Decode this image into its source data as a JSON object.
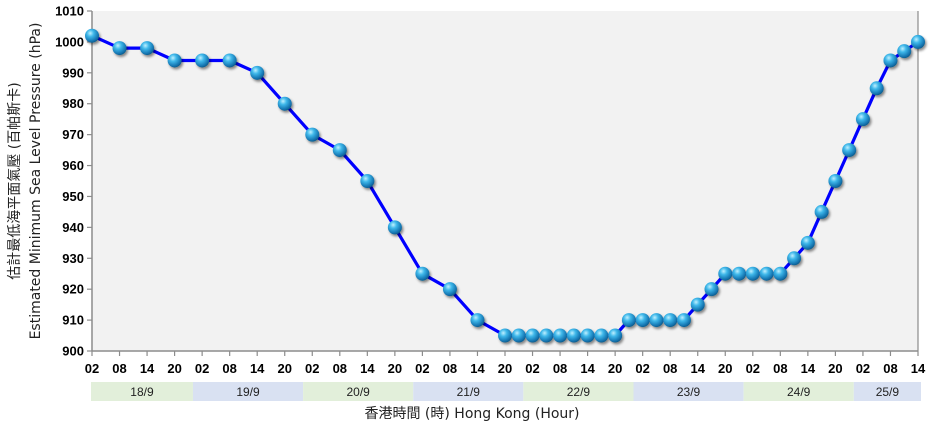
{
  "chart_data": {
    "type": "line",
    "title": "",
    "xlabel": "香港時間 (時) Hong Kong (Hour)",
    "ylabel_zh": "估計最低海平面氣壓 (百帕斯卡)",
    "ylabel_en": "Estimated Minimum Sea Level Pressure (hPa)",
    "ylim": [
      900,
      1010
    ],
    "yticks": [
      900,
      910,
      920,
      930,
      940,
      950,
      960,
      970,
      980,
      990,
      1000,
      1010
    ],
    "grid": false,
    "legend": null,
    "x_unit": "hours since 18/9 02:00 HKT",
    "xlim": [
      0,
      180
    ],
    "xtick_hours": [
      0,
      6,
      12,
      18,
      24,
      30,
      36,
      42,
      48,
      54,
      60,
      66,
      72,
      78,
      84,
      90,
      96,
      102,
      108,
      114,
      120,
      126,
      132,
      138,
      144,
      150,
      156,
      162,
      168,
      174,
      180
    ],
    "xtick_labels": [
      "02",
      "08",
      "14",
      "20",
      "02",
      "08",
      "14",
      "20",
      "02",
      "08",
      "14",
      "20",
      "02",
      "08",
      "14",
      "20",
      "02",
      "08",
      "14",
      "20",
      "02",
      "08",
      "14",
      "20",
      "02",
      "08",
      "14",
      "20",
      "02",
      "08",
      "14"
    ],
    "date_bands": [
      {
        "label": "18/9",
        "start": -2,
        "end": 22,
        "color": "#e2efda"
      },
      {
        "label": "19/9",
        "start": 22,
        "end": 46,
        "color": "#d9e1f2"
      },
      {
        "label": "20/9",
        "start": 46,
        "end": 70,
        "color": "#e2efda"
      },
      {
        "label": "21/9",
        "start": 70,
        "end": 94,
        "color": "#d9e1f2"
      },
      {
        "label": "22/9",
        "start": 94,
        "end": 118,
        "color": "#e2efda"
      },
      {
        "label": "23/9",
        "start": 118,
        "end": 142,
        "color": "#d9e1f2"
      },
      {
        "label": "24/9",
        "start": 142,
        "end": 166,
        "color": "#e2efda"
      },
      {
        "label": "25/9",
        "start": 166,
        "end": 190,
        "color": "#d9e1f2"
      }
    ],
    "series": [
      {
        "name": "Estimated Minimum Sea Level Pressure",
        "color": "#0000ff",
        "marker_color": "#29a3df",
        "x": [
          0,
          6,
          12,
          18,
          24,
          30,
          36,
          42,
          48,
          54,
          60,
          66,
          72,
          78,
          84,
          90,
          93,
          96,
          99,
          102,
          105,
          108,
          111,
          114,
          117,
          120,
          123,
          126,
          129,
          132,
          135,
          138,
          141,
          144,
          147,
          150,
          153,
          156,
          159,
          162,
          165,
          168,
          171,
          174,
          177,
          180
        ],
        "values": [
          1002,
          998,
          998,
          994,
          994,
          994,
          990,
          980,
          970,
          965,
          955,
          940,
          925,
          920,
          910,
          905,
          905,
          905,
          905,
          905,
          905,
          905,
          905,
          905,
          910,
          910,
          910,
          910,
          910,
          915,
          920,
          925,
          925,
          925,
          925,
          925,
          930,
          935,
          945,
          955,
          965,
          975,
          985,
          994,
          997,
          1000
        ]
      }
    ]
  },
  "colors": {
    "plot_bg": "#f2f2f2",
    "axis": "#8c8c8c",
    "line": "#0000ff",
    "marker": "#29a3df"
  }
}
